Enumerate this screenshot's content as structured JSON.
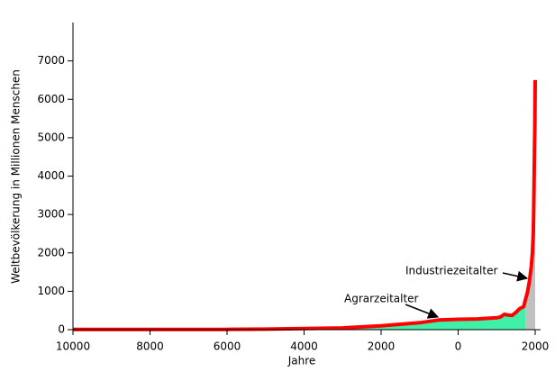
{
  "chart_data": {
    "type": "line",
    "xlabel": "Jahre",
    "ylabel": "Weltbevölkerung in Millionen Menschen",
    "x": [
      -10000,
      -8000,
      -6000,
      -5000,
      -4000,
      -3000,
      -2000,
      -1000,
      -500,
      0,
      500,
      1000,
      1100,
      1200,
      1300,
      1400,
      1500,
      1600,
      1700,
      1750,
      1800,
      1850,
      1900,
      1927,
      1950,
      1960,
      1970,
      1980,
      1990,
      2000
    ],
    "values": [
      4,
      5,
      8,
      14,
      28,
      45,
      100,
      180,
      250,
      270,
      280,
      310,
      330,
      400,
      380,
      370,
      450,
      550,
      600,
      790,
      980,
      1260,
      1650,
      2000,
      2520,
      3020,
      3700,
      4450,
      5300,
      6500
    ],
    "color": "#ff0000",
    "areas": [
      {
        "color": "#40f0a8",
        "from": -3000,
        "to": 1750
      },
      {
        "color": "#c0c0c0",
        "from": 1750,
        "to": 2000
      }
    ],
    "xlim": [
      -10000,
      2000
    ],
    "xticks": [
      {
        "value": -10000,
        "label": "10000"
      },
      {
        "value": -8000,
        "label": "8000"
      },
      {
        "value": -6000,
        "label": "6000"
      },
      {
        "value": -4000,
        "label": "4000"
      },
      {
        "value": -2000,
        "label": "2000"
      },
      0,
      2000
    ],
    "ylim": [
      0,
      8000
    ],
    "yticks": [
      0,
      1000,
      2000,
      3000,
      4000,
      5000,
      6000,
      7000
    ],
    "annotations": [
      "Agrarzeitalter",
      "Industriezeitalter"
    ]
  }
}
